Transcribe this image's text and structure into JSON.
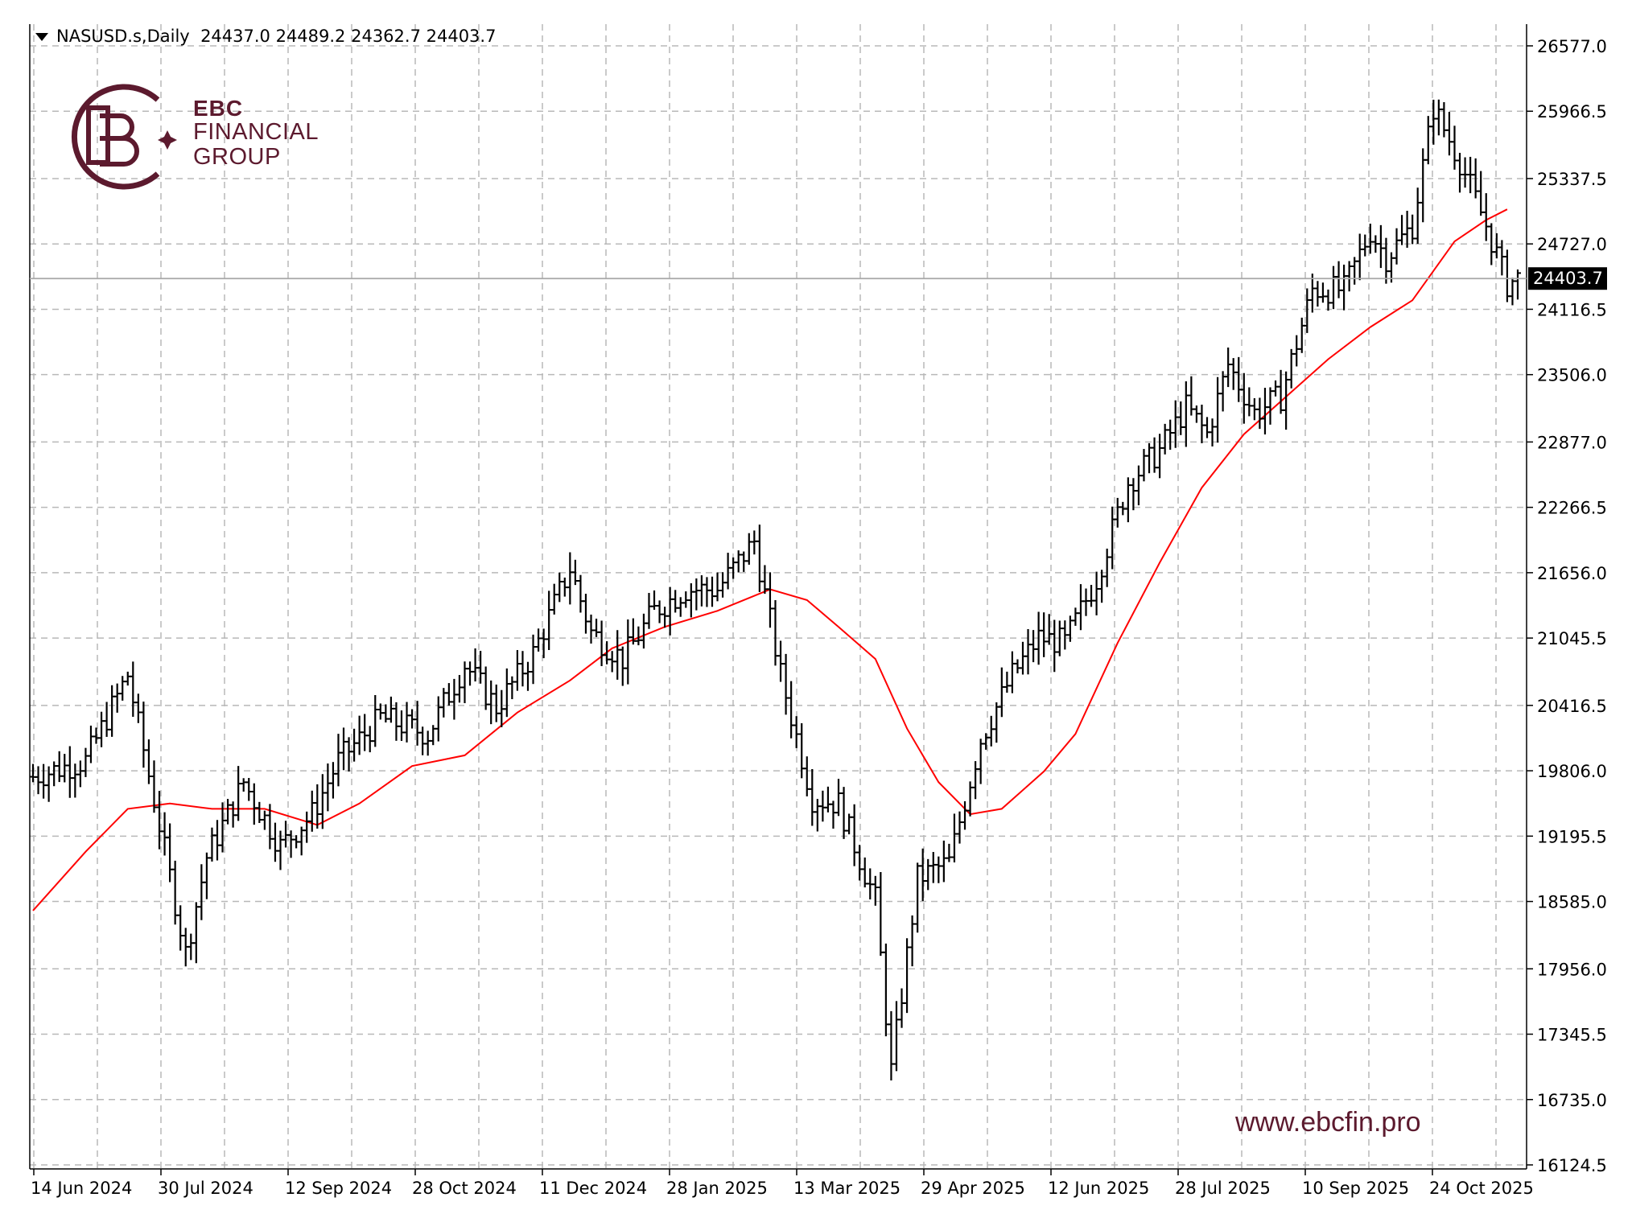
{
  "header": {
    "symbol_timeframe": "NASUSD.s,Daily",
    "ohlc": "24437.0 24489.2 24362.7 24403.7"
  },
  "brand": {
    "line1": "EBC",
    "line2": "FINANCIAL",
    "line3": "GROUP",
    "url": "www.ebcfin.pro",
    "color": "#5c1a2e"
  },
  "chart_data": {
    "type": "ohlc",
    "title": "",
    "grid": true,
    "ylim": [
      16124.5,
      26577.0
    ],
    "y_ticks": [
      "26577.0",
      "25966.5",
      "25337.5",
      "24727.0",
      "24116.5",
      "23506.0",
      "22877.0",
      "22266.5",
      "21656.0",
      "21045.5",
      "20416.5",
      "19806.0",
      "19195.5",
      "18585.0",
      "17956.0",
      "17345.5",
      "16735.0",
      "16124.5"
    ],
    "x_ticks": [
      "14 Jun 2024",
      "30 Jul 2024",
      "12 Sep 2024",
      "28 Oct 2024",
      "11 Dec 2024",
      "28 Jan 2025",
      "13 Mar 2025",
      "29 Apr 2025",
      "12 Jun 2025",
      "28 Jul 2025",
      "10 Sep 2025",
      "24 Oct 2025"
    ],
    "current_price": 24403.7,
    "current_price_label": "24403.7",
    "moving_average_color": "#ff0000",
    "close_anchors": [
      [
        0,
        19750
      ],
      [
        10,
        19900
      ],
      [
        18,
        20700
      ],
      [
        24,
        19300
      ],
      [
        29,
        18100
      ],
      [
        33,
        19000
      ],
      [
        40,
        19700
      ],
      [
        47,
        19100
      ],
      [
        53,
        19400
      ],
      [
        58,
        19900
      ],
      [
        66,
        20300
      ],
      [
        75,
        20150
      ],
      [
        82,
        20800
      ],
      [
        88,
        20400
      ],
      [
        95,
        20900
      ],
      [
        102,
        21700
      ],
      [
        106,
        21100
      ],
      [
        112,
        20850
      ],
      [
        118,
        21300
      ],
      [
        124,
        21500
      ],
      [
        130,
        21500
      ],
      [
        137,
        21950
      ],
      [
        142,
        20700
      ],
      [
        148,
        19550
      ],
      [
        153,
        19500
      ],
      [
        160,
        18600
      ],
      [
        163,
        17000
      ],
      [
        168,
        18800
      ],
      [
        174,
        18950
      ],
      [
        180,
        20100
      ],
      [
        186,
        20700
      ],
      [
        191,
        21050
      ],
      [
        196,
        21000
      ],
      [
        202,
        21600
      ],
      [
        208,
        22500
      ],
      [
        214,
        22800
      ],
      [
        219,
        23200
      ],
      [
        223,
        22950
      ],
      [
        227,
        23600
      ],
      [
        232,
        23150
      ],
      [
        237,
        23300
      ],
      [
        243,
        24300
      ],
      [
        249,
        24300
      ],
      [
        254,
        24850
      ],
      [
        257,
        24600
      ],
      [
        262,
        24900
      ],
      [
        266,
        26000
      ],
      [
        271,
        25500
      ],
      [
        276,
        24900
      ],
      [
        280,
        24350
      ],
      [
        282,
        24403.7
      ]
    ],
    "moving_average": [
      [
        0,
        18500
      ],
      [
        10,
        19050
      ],
      [
        18,
        19450
      ],
      [
        26,
        19500
      ],
      [
        34,
        19450
      ],
      [
        44,
        19450
      ],
      [
        54,
        19300
      ],
      [
        62,
        19500
      ],
      [
        72,
        19850
      ],
      [
        82,
        19950
      ],
      [
        92,
        20350
      ],
      [
        102,
        20650
      ],
      [
        110,
        20950
      ],
      [
        120,
        21150
      ],
      [
        130,
        21300
      ],
      [
        140,
        21500
      ],
      [
        147,
        21400
      ],
      [
        153,
        21150
      ],
      [
        160,
        20850
      ],
      [
        166,
        20200
      ],
      [
        172,
        19700
      ],
      [
        178,
        19400
      ],
      [
        184,
        19450
      ],
      [
        192,
        19800
      ],
      [
        198,
        20150
      ],
      [
        206,
        21000
      ],
      [
        214,
        21750
      ],
      [
        222,
        22450
      ],
      [
        230,
        22950
      ],
      [
        238,
        23300
      ],
      [
        246,
        23650
      ],
      [
        254,
        23950
      ],
      [
        262,
        24200
      ],
      [
        270,
        24750
      ],
      [
        276,
        24950
      ],
      [
        280,
        25050
      ]
    ]
  }
}
